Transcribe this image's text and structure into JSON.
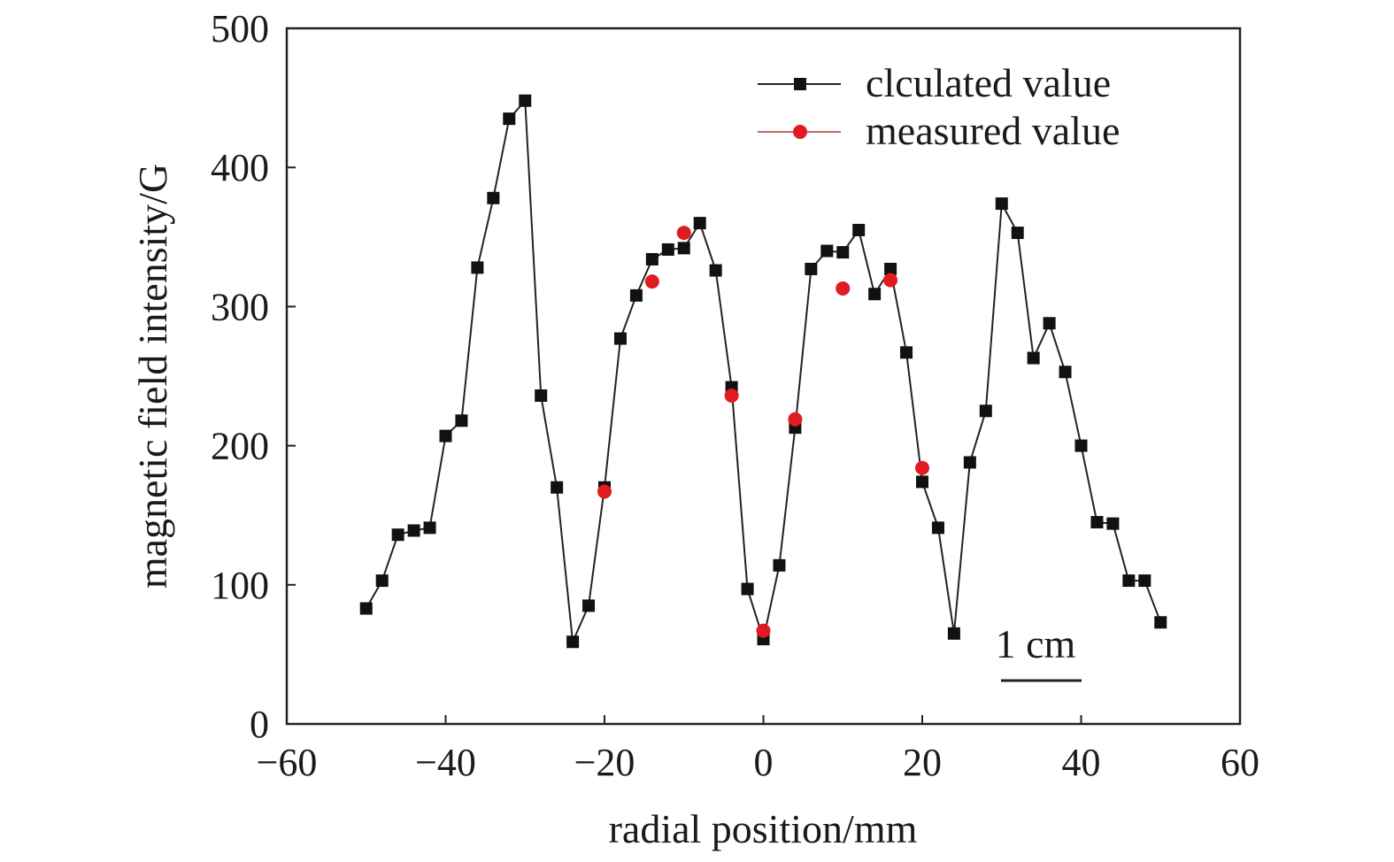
{
  "chart_data": {
    "type": "line",
    "title": "",
    "xlabel": "radial position/mm",
    "ylabel": "magnetic field intensity/G",
    "xlim": [
      -60,
      60
    ],
    "ylim": [
      0,
      500
    ],
    "xticks": [
      -60,
      -40,
      -20,
      0,
      20,
      40,
      60
    ],
    "yticks": [
      0,
      100,
      200,
      300,
      400,
      500
    ],
    "xtick_labels": [
      "−60",
      "−40",
      "−20",
      "0",
      "20",
      "40",
      "60"
    ],
    "ytick_labels": [
      "0",
      "100",
      "200",
      "300",
      "400",
      "500"
    ],
    "grid": false,
    "legend_position": "top-right",
    "annotation": "1 cm",
    "series": [
      {
        "name": "clculated value",
        "marker": "square",
        "color": "#111111",
        "line_color": "#222222",
        "x": [
          -50,
          -48,
          -46,
          -44,
          -42,
          -40,
          -38,
          -36,
          -34,
          -32,
          -30,
          -28,
          -26,
          -24,
          -22,
          -20,
          -18,
          -16,
          -14,
          -12,
          -10,
          -8,
          -6,
          -4,
          -2,
          0,
          2,
          4,
          6,
          8,
          10,
          12,
          14,
          16,
          18,
          20,
          22,
          24,
          26,
          28,
          30,
          32,
          34,
          36,
          38,
          40,
          42,
          44,
          46,
          48,
          50
        ],
        "y": [
          83,
          103,
          136,
          139,
          141,
          207,
          218,
          328,
          378,
          435,
          448,
          236,
          170,
          59,
          85,
          170,
          277,
          308,
          334,
          341,
          342,
          360,
          326,
          242,
          97,
          61,
          114,
          213,
          327,
          340,
          339,
          355,
          309,
          327,
          267,
          174,
          141,
          65,
          188,
          225,
          374,
          353,
          263,
          288,
          253,
          200,
          145,
          144,
          103,
          103,
          73
        ]
      },
      {
        "name": "measured value",
        "marker": "circle",
        "color": "#e11b22",
        "line_color": "#c46a6a",
        "x": [
          -20,
          -14,
          -10,
          -4,
          0,
          4,
          10,
          16,
          20
        ],
        "y": [
          167,
          318,
          353,
          236,
          67,
          219,
          313,
          319,
          184
        ]
      }
    ]
  }
}
